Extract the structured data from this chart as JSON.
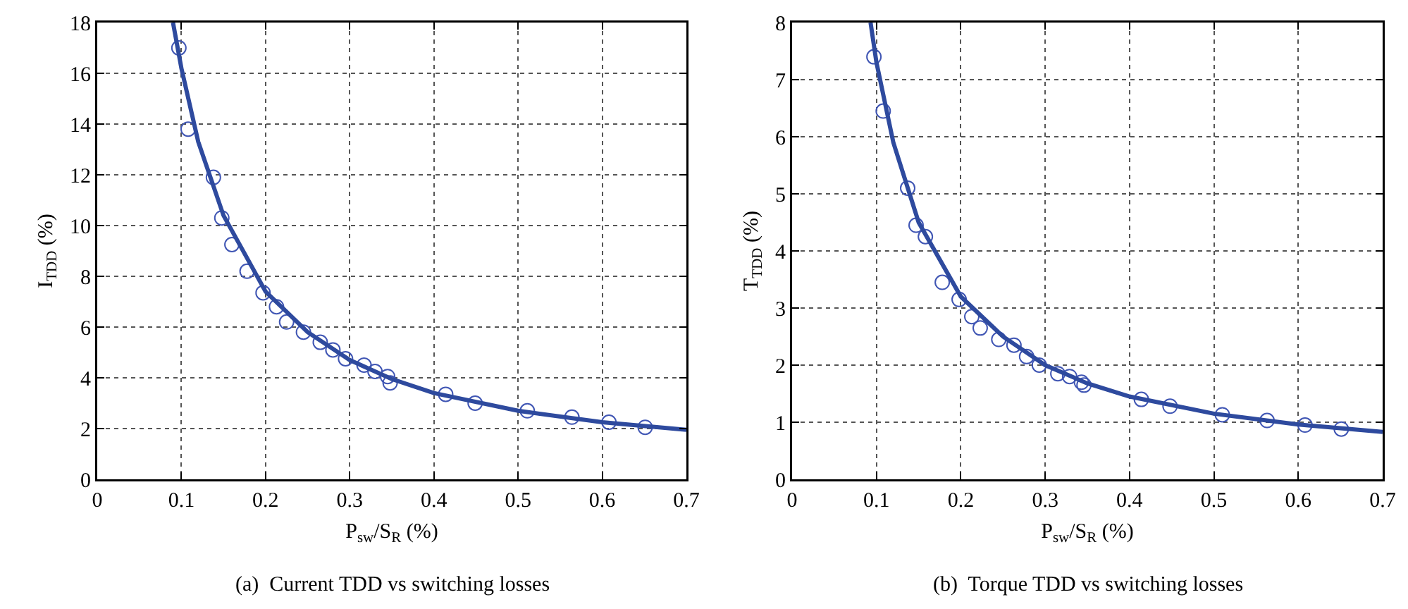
{
  "chart_data": [
    {
      "type": "scatter",
      "xlabel": "P$_{sw}$/S$_{R}$ (%)",
      "ylabel": "I$_{TDD}$ (%)",
      "annotations": [
        "(a)  Current TDD vs switching losses"
      ],
      "xlim": [
        0,
        0.7
      ],
      "xticks": [
        0,
        0.1,
        0.2,
        0.3,
        0.4,
        0.5,
        0.6,
        0.7
      ],
      "ylim": [
        0,
        18
      ],
      "yticks": [
        0,
        2,
        4,
        6,
        8,
        10,
        12,
        14,
        16,
        18
      ],
      "grid": true,
      "series": [
        {
          "type": "scatter",
          "marker": "circle",
          "color": "#4056b4",
          "x": [
            0.097,
            0.108,
            0.138,
            0.148,
            0.16,
            0.178,
            0.197,
            0.213,
            0.225,
            0.245,
            0.265,
            0.28,
            0.295,
            0.317,
            0.33,
            0.345,
            0.348,
            0.414,
            0.449,
            0.511,
            0.564,
            0.608,
            0.651
          ],
          "values": [
            17.0,
            13.8,
            11.9,
            10.3,
            9.25,
            8.2,
            7.35,
            6.8,
            6.2,
            5.8,
            5.4,
            5.1,
            4.75,
            4.5,
            4.25,
            4.05,
            3.8,
            3.35,
            3.0,
            2.7,
            2.45,
            2.25,
            2.05
          ]
        },
        {
          "type": "line",
          "marker": "none",
          "line_style": "solid",
          "color": "#2e4a9e",
          "x": [
            0.09,
            0.1,
            0.12,
            0.15,
            0.2,
            0.25,
            0.3,
            0.35,
            0.4,
            0.5,
            0.6,
            0.7
          ],
          "values": [
            18,
            16.2,
            13.3,
            10.4,
            7.4,
            5.8,
            4.7,
            3.95,
            3.4,
            2.7,
            2.25,
            1.95
          ]
        }
      ]
    },
    {
      "type": "scatter",
      "xlabel": "P$_{sw}$/S$_{R}$ (%)",
      "ylabel": "T$_{TDD}$ (%)",
      "annotations": [
        "(b)  Torque TDD vs switching losses"
      ],
      "xlim": [
        0,
        0.7
      ],
      "xticks": [
        0,
        0.1,
        0.2,
        0.3,
        0.4,
        0.5,
        0.6,
        0.7
      ],
      "ylim": [
        0,
        8
      ],
      "yticks": [
        0,
        1,
        2,
        3,
        4,
        5,
        6,
        7,
        8
      ],
      "grid": true,
      "series": [
        {
          "type": "scatter",
          "marker": "circle",
          "color": "#4056b4",
          "x": [
            0.097,
            0.108,
            0.137,
            0.147,
            0.158,
            0.178,
            0.198,
            0.213,
            0.223,
            0.245,
            0.263,
            0.278,
            0.293,
            0.315,
            0.329,
            0.343,
            0.346,
            0.414,
            0.448,
            0.51,
            0.563,
            0.608,
            0.651
          ],
          "values": [
            7.4,
            6.45,
            5.1,
            4.45,
            4.25,
            3.45,
            3.15,
            2.85,
            2.65,
            2.45,
            2.35,
            2.15,
            2.0,
            1.85,
            1.8,
            1.7,
            1.65,
            1.4,
            1.28,
            1.13,
            1.03,
            0.95,
            0.88
          ]
        },
        {
          "type": "line",
          "marker": "none",
          "line_style": "solid",
          "color": "#2e4a9e",
          "x": [
            0.093,
            0.1,
            0.12,
            0.15,
            0.2,
            0.25,
            0.3,
            0.35,
            0.4,
            0.5,
            0.6,
            0.7
          ],
          "values": [
            8,
            7.3,
            5.9,
            4.5,
            3.2,
            2.5,
            2.0,
            1.68,
            1.45,
            1.15,
            0.96,
            0.83
          ]
        }
      ]
    }
  ]
}
